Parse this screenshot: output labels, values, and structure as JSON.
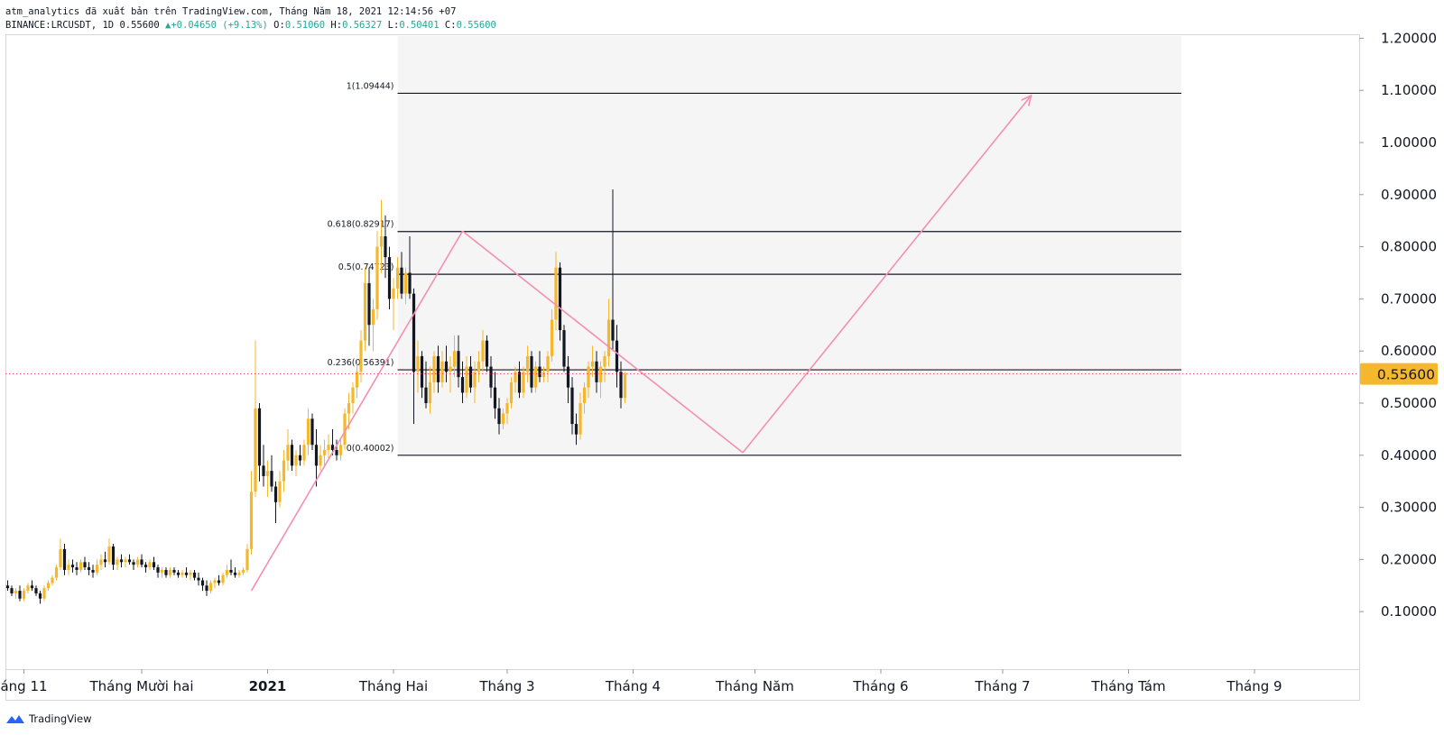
{
  "header": {
    "published": "atm_analytics đã xuất bản trên TradingView.com, Tháng Năm 18, 2021 12:14:56 +07",
    "symbol": "BINANCE:LRCUSDT, 1D",
    "last": "0.55600",
    "change_arrow": "▲",
    "change": "+0.04650 (+9.13%)",
    "open_label": "O:",
    "open": "0.51060",
    "high_label": "H:",
    "high": "0.56327",
    "low_label": "L:",
    "low": "0.50401",
    "close_label": "C:",
    "close": "0.55600"
  },
  "footer": {
    "brand": "TradingView",
    "logo_icon": "tradingview-logo-icon"
  },
  "chart_data": {
    "type": "candlestick",
    "symbol": "BINANCE:LRCUSDT",
    "interval": "1D",
    "ylim": [
      0,
      1.2
    ],
    "y_ticks": [
      "0.10000",
      "0.20000",
      "0.30000",
      "0.40000",
      "0.50000",
      "0.60000",
      "0.70000",
      "0.80000",
      "0.90000",
      "1.00000",
      "1.10000",
      "1.20000"
    ],
    "x_ticks": [
      {
        "label": "áng 11",
        "day": 1,
        "bold": false
      },
      {
        "label": "Tháng Mười hai",
        "day": 30,
        "bold": false
      },
      {
        "label": "2021",
        "day": 61,
        "bold": true
      },
      {
        "label": "Tháng Hai",
        "day": 92,
        "bold": false
      },
      {
        "label": "Tháng 3",
        "day": 120,
        "bold": false
      },
      {
        "label": "Tháng 4",
        "day": 151,
        "bold": false
      },
      {
        "label": "Tháng Năm",
        "day": 181,
        "bold": false
      },
      {
        "label": "Tháng 6",
        "day": 212,
        "bold": false
      },
      {
        "label": "Tháng 7",
        "day": 242,
        "bold": false
      },
      {
        "label": "Tháng Tám",
        "day": 273,
        "bold": false
      },
      {
        "label": "Tháng 9",
        "day": 304,
        "bold": false
      }
    ],
    "price_label": "0.55600",
    "last_price": 0.556,
    "colors": {
      "up": "#f5b72b",
      "down": "#131722",
      "price_line": "#f23645",
      "price_badge": "#f5b72b",
      "pattern": "#f48fb1",
      "fib_zone": "#f5f5f5"
    },
    "fib_levels": [
      {
        "label": "1(1.09444)",
        "value": 1.09444
      },
      {
        "label": "0.618(0.82917)",
        "value": 0.82917
      },
      {
        "label": "0.5(0.74723)",
        "value": 0.74723
      },
      {
        "label": "0.236(0.56391)",
        "value": 0.56391
      },
      {
        "label": "0(0.40002)",
        "value": 0.40002
      }
    ],
    "fib_range_days": [
      93,
      286
    ],
    "pattern_path": [
      {
        "day": 57,
        "price": 0.14
      },
      {
        "day": 109,
        "price": 0.83
      },
      {
        "day": 178,
        "price": 0.405
      },
      {
        "day": 249,
        "price": 1.09
      }
    ],
    "candles": [
      [
        -3,
        0.15,
        0.16,
        0.14,
        0.145
      ],
      [
        -2,
        0.145,
        0.15,
        0.13,
        0.135
      ],
      [
        -1,
        0.135,
        0.145,
        0.125,
        0.14
      ],
      [
        0,
        0.14,
        0.15,
        0.12,
        0.125
      ],
      [
        1,
        0.125,
        0.145,
        0.12,
        0.14
      ],
      [
        2,
        0.14,
        0.155,
        0.135,
        0.15
      ],
      [
        3,
        0.15,
        0.16,
        0.14,
        0.145
      ],
      [
        4,
        0.145,
        0.15,
        0.13,
        0.135
      ],
      [
        5,
        0.135,
        0.14,
        0.115,
        0.125
      ],
      [
        6,
        0.125,
        0.15,
        0.12,
        0.145
      ],
      [
        7,
        0.145,
        0.16,
        0.14,
        0.155
      ],
      [
        8,
        0.155,
        0.17,
        0.15,
        0.165
      ],
      [
        9,
        0.165,
        0.19,
        0.16,
        0.185
      ],
      [
        10,
        0.185,
        0.24,
        0.18,
        0.22
      ],
      [
        11,
        0.22,
        0.23,
        0.17,
        0.18
      ],
      [
        12,
        0.18,
        0.2,
        0.17,
        0.19
      ],
      [
        13,
        0.19,
        0.2,
        0.175,
        0.185
      ],
      [
        14,
        0.185,
        0.195,
        0.17,
        0.18
      ],
      [
        15,
        0.18,
        0.2,
        0.175,
        0.195
      ],
      [
        16,
        0.195,
        0.205,
        0.18,
        0.185
      ],
      [
        17,
        0.185,
        0.195,
        0.17,
        0.18
      ],
      [
        18,
        0.18,
        0.19,
        0.165,
        0.175
      ],
      [
        19,
        0.175,
        0.2,
        0.17,
        0.19
      ],
      [
        20,
        0.19,
        0.21,
        0.18,
        0.2
      ],
      [
        21,
        0.2,
        0.215,
        0.185,
        0.195
      ],
      [
        22,
        0.195,
        0.24,
        0.19,
        0.225
      ],
      [
        23,
        0.225,
        0.23,
        0.18,
        0.19
      ],
      [
        24,
        0.19,
        0.205,
        0.18,
        0.2
      ],
      [
        25,
        0.2,
        0.21,
        0.185,
        0.195
      ],
      [
        26,
        0.195,
        0.205,
        0.185,
        0.2
      ],
      [
        27,
        0.2,
        0.21,
        0.19,
        0.195
      ],
      [
        28,
        0.195,
        0.2,
        0.18,
        0.19
      ],
      [
        29,
        0.19,
        0.205,
        0.185,
        0.2
      ],
      [
        30,
        0.2,
        0.21,
        0.185,
        0.19
      ],
      [
        31,
        0.19,
        0.195,
        0.175,
        0.185
      ],
      [
        32,
        0.185,
        0.2,
        0.18,
        0.195
      ],
      [
        33,
        0.195,
        0.205,
        0.18,
        0.185
      ],
      [
        34,
        0.185,
        0.19,
        0.165,
        0.175
      ],
      [
        35,
        0.175,
        0.185,
        0.165,
        0.18
      ],
      [
        36,
        0.18,
        0.185,
        0.165,
        0.17
      ],
      [
        37,
        0.17,
        0.185,
        0.165,
        0.18
      ],
      [
        38,
        0.18,
        0.185,
        0.17,
        0.175
      ],
      [
        39,
        0.175,
        0.18,
        0.165,
        0.17
      ],
      [
        40,
        0.17,
        0.18,
        0.165,
        0.175
      ],
      [
        41,
        0.175,
        0.185,
        0.165,
        0.17
      ],
      [
        42,
        0.17,
        0.18,
        0.16,
        0.175
      ],
      [
        43,
        0.175,
        0.18,
        0.16,
        0.165
      ],
      [
        44,
        0.165,
        0.175,
        0.15,
        0.16
      ],
      [
        45,
        0.16,
        0.165,
        0.14,
        0.15
      ],
      [
        46,
        0.15,
        0.16,
        0.13,
        0.14
      ],
      [
        47,
        0.14,
        0.16,
        0.135,
        0.155
      ],
      [
        48,
        0.155,
        0.165,
        0.145,
        0.16
      ],
      [
        49,
        0.16,
        0.17,
        0.15,
        0.155
      ],
      [
        50,
        0.155,
        0.175,
        0.15,
        0.17
      ],
      [
        51,
        0.17,
        0.19,
        0.165,
        0.18
      ],
      [
        52,
        0.18,
        0.2,
        0.17,
        0.175
      ],
      [
        53,
        0.175,
        0.185,
        0.165,
        0.17
      ],
      [
        54,
        0.17,
        0.18,
        0.165,
        0.175
      ],
      [
        55,
        0.175,
        0.185,
        0.17,
        0.18
      ],
      [
        56,
        0.18,
        0.23,
        0.175,
        0.22
      ],
      [
        57,
        0.22,
        0.37,
        0.21,
        0.33
      ],
      [
        58,
        0.33,
        0.62,
        0.32,
        0.49
      ],
      [
        59,
        0.49,
        0.5,
        0.35,
        0.38
      ],
      [
        60,
        0.38,
        0.42,
        0.34,
        0.36
      ],
      [
        61,
        0.36,
        0.39,
        0.32,
        0.37
      ],
      [
        62,
        0.37,
        0.4,
        0.33,
        0.34
      ],
      [
        63,
        0.34,
        0.35,
        0.27,
        0.31
      ],
      [
        64,
        0.31,
        0.37,
        0.3,
        0.35
      ],
      [
        65,
        0.35,
        0.41,
        0.33,
        0.39
      ],
      [
        66,
        0.39,
        0.45,
        0.37,
        0.42
      ],
      [
        67,
        0.42,
        0.43,
        0.37,
        0.38
      ],
      [
        68,
        0.38,
        0.41,
        0.36,
        0.4
      ],
      [
        69,
        0.4,
        0.42,
        0.38,
        0.39
      ],
      [
        70,
        0.39,
        0.43,
        0.38,
        0.42
      ],
      [
        71,
        0.42,
        0.49,
        0.4,
        0.47
      ],
      [
        72,
        0.47,
        0.48,
        0.41,
        0.42
      ],
      [
        73,
        0.42,
        0.45,
        0.34,
        0.38
      ],
      [
        74,
        0.38,
        0.42,
        0.37,
        0.4
      ],
      [
        75,
        0.4,
        0.43,
        0.38,
        0.41
      ],
      [
        76,
        0.41,
        0.44,
        0.39,
        0.42
      ],
      [
        77,
        0.42,
        0.45,
        0.4,
        0.41
      ],
      [
        78,
        0.41,
        0.43,
        0.39,
        0.4
      ],
      [
        79,
        0.4,
        0.43,
        0.39,
        0.42
      ],
      [
        80,
        0.42,
        0.49,
        0.41,
        0.48
      ],
      [
        81,
        0.48,
        0.52,
        0.45,
        0.5
      ],
      [
        82,
        0.5,
        0.54,
        0.48,
        0.53
      ],
      [
        83,
        0.53,
        0.58,
        0.51,
        0.56
      ],
      [
        84,
        0.56,
        0.64,
        0.54,
        0.62
      ],
      [
        85,
        0.62,
        0.76,
        0.6,
        0.73
      ],
      [
        86,
        0.73,
        0.76,
        0.61,
        0.65
      ],
      [
        87,
        0.65,
        0.7,
        0.6,
        0.68
      ],
      [
        88,
        0.68,
        0.83,
        0.66,
        0.8
      ],
      [
        89,
        0.8,
        0.89,
        0.75,
        0.82
      ],
      [
        90,
        0.82,
        0.86,
        0.74,
        0.78
      ],
      [
        91,
        0.78,
        0.8,
        0.68,
        0.7
      ],
      [
        92,
        0.7,
        0.74,
        0.64,
        0.72
      ],
      [
        93,
        0.72,
        0.78,
        0.7,
        0.76
      ],
      [
        94,
        0.76,
        0.79,
        0.7,
        0.71
      ],
      [
        95,
        0.71,
        0.76,
        0.69,
        0.75
      ],
      [
        96,
        0.75,
        0.82,
        0.7,
        0.71
      ],
      [
        97,
        0.71,
        0.72,
        0.46,
        0.56
      ],
      [
        98,
        0.56,
        0.62,
        0.52,
        0.59
      ],
      [
        99,
        0.59,
        0.6,
        0.51,
        0.53
      ],
      [
        100,
        0.53,
        0.58,
        0.49,
        0.5
      ],
      [
        101,
        0.5,
        0.57,
        0.48,
        0.54
      ],
      [
        102,
        0.54,
        0.6,
        0.52,
        0.59
      ],
      [
        103,
        0.59,
        0.61,
        0.52,
        0.54
      ],
      [
        104,
        0.54,
        0.6,
        0.53,
        0.58
      ],
      [
        105,
        0.58,
        0.61,
        0.54,
        0.56
      ],
      [
        106,
        0.56,
        0.59,
        0.52,
        0.57
      ],
      [
        107,
        0.57,
        0.63,
        0.55,
        0.6
      ],
      [
        108,
        0.6,
        0.63,
        0.53,
        0.55
      ],
      [
        109,
        0.55,
        0.58,
        0.5,
        0.52
      ],
      [
        110,
        0.52,
        0.59,
        0.51,
        0.57
      ],
      [
        111,
        0.57,
        0.59,
        0.52,
        0.53
      ],
      [
        112,
        0.53,
        0.58,
        0.5,
        0.56
      ],
      [
        113,
        0.56,
        0.6,
        0.54,
        0.58
      ],
      [
        114,
        0.58,
        0.64,
        0.56,
        0.62
      ],
      [
        115,
        0.62,
        0.63,
        0.56,
        0.57
      ],
      [
        116,
        0.57,
        0.59,
        0.51,
        0.53
      ],
      [
        117,
        0.53,
        0.56,
        0.47,
        0.49
      ],
      [
        118,
        0.49,
        0.51,
        0.44,
        0.46
      ],
      [
        119,
        0.46,
        0.49,
        0.45,
        0.48
      ],
      [
        120,
        0.48,
        0.51,
        0.46,
        0.5
      ],
      [
        121,
        0.5,
        0.55,
        0.49,
        0.54
      ],
      [
        122,
        0.54,
        0.57,
        0.52,
        0.56
      ],
      [
        123,
        0.56,
        0.58,
        0.51,
        0.52
      ],
      [
        124,
        0.52,
        0.57,
        0.51,
        0.56
      ],
      [
        125,
        0.56,
        0.61,
        0.54,
        0.59
      ],
      [
        126,
        0.59,
        0.6,
        0.52,
        0.53
      ],
      [
        127,
        0.53,
        0.58,
        0.52,
        0.57
      ],
      [
        128,
        0.57,
        0.6,
        0.54,
        0.55
      ],
      [
        129,
        0.55,
        0.57,
        0.54,
        0.56
      ],
      [
        130,
        0.56,
        0.6,
        0.54,
        0.59
      ],
      [
        131,
        0.59,
        0.68,
        0.58,
        0.66
      ],
      [
        132,
        0.66,
        0.79,
        0.64,
        0.76
      ],
      [
        133,
        0.76,
        0.77,
        0.62,
        0.64
      ],
      [
        134,
        0.64,
        0.65,
        0.56,
        0.57
      ],
      [
        135,
        0.57,
        0.59,
        0.5,
        0.53
      ],
      [
        136,
        0.53,
        0.55,
        0.44,
        0.46
      ],
      [
        137,
        0.46,
        0.48,
        0.42,
        0.44
      ],
      [
        138,
        0.44,
        0.52,
        0.43,
        0.5
      ],
      [
        139,
        0.5,
        0.54,
        0.48,
        0.53
      ],
      [
        140,
        0.53,
        0.58,
        0.51,
        0.57
      ],
      [
        141,
        0.57,
        0.61,
        0.55,
        0.58
      ],
      [
        142,
        0.58,
        0.6,
        0.52,
        0.54
      ],
      [
        143,
        0.54,
        0.58,
        0.51,
        0.57
      ],
      [
        144,
        0.57,
        0.6,
        0.54,
        0.59
      ],
      [
        145,
        0.59,
        0.7,
        0.57,
        0.66
      ],
      [
        146,
        0.66,
        0.91,
        0.6,
        0.62
      ],
      [
        147,
        0.62,
        0.65,
        0.53,
        0.56
      ],
      [
        148,
        0.56,
        0.58,
        0.49,
        0.51
      ],
      [
        149,
        0.51,
        0.56,
        0.5,
        0.556
      ]
    ]
  }
}
